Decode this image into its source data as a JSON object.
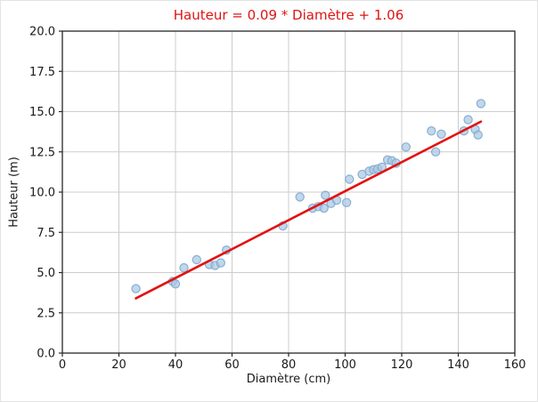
{
  "chart_data": {
    "type": "scatter",
    "title": "Hauteur = 0.09 * Diamètre + 1.06",
    "xlabel": "Diamètre (cm)",
    "ylabel": "Hauteur (m)",
    "xlim": [
      0,
      160
    ],
    "ylim": [
      0,
      20
    ],
    "xticks": [
      0,
      20,
      40,
      60,
      80,
      100,
      120,
      140,
      160
    ],
    "xtick_labels": [
      "0",
      "20",
      "40",
      "60",
      "80",
      "100",
      "120",
      "140",
      "160"
    ],
    "yticks": [
      0,
      2.5,
      5,
      7.5,
      10,
      12.5,
      15,
      17.5,
      20
    ],
    "ytick_labels": [
      "0.0",
      "2.5",
      "5.0",
      "7.5",
      "10.0",
      "12.5",
      "15.0",
      "17.5",
      "20.0"
    ],
    "grid": true,
    "legend": "none",
    "points": [
      [
        26,
        4.0
      ],
      [
        39,
        4.45
      ],
      [
        40,
        4.3
      ],
      [
        43,
        5.3
      ],
      [
        47.5,
        5.8
      ],
      [
        52,
        5.5
      ],
      [
        54,
        5.45
      ],
      [
        56,
        5.6
      ],
      [
        58,
        6.4
      ],
      [
        78,
        7.9
      ],
      [
        84,
        9.7
      ],
      [
        88.5,
        9.0
      ],
      [
        90.5,
        9.1
      ],
      [
        92.5,
        9.0
      ],
      [
        93,
        9.8
      ],
      [
        95,
        9.3
      ],
      [
        97,
        9.5
      ],
      [
        100.5,
        9.35
      ],
      [
        101.5,
        10.8
      ],
      [
        106,
        11.1
      ],
      [
        108.5,
        11.3
      ],
      [
        110,
        11.4
      ],
      [
        111.5,
        11.45
      ],
      [
        113,
        11.55
      ],
      [
        115,
        12.0
      ],
      [
        116.5,
        11.95
      ],
      [
        118,
        11.8
      ],
      [
        121.5,
        12.8
      ],
      [
        130.5,
        13.8
      ],
      [
        132,
        12.5
      ],
      [
        134,
        13.6
      ],
      [
        142,
        13.8
      ],
      [
        143.5,
        14.5
      ],
      [
        146,
        13.9
      ],
      [
        147,
        13.55
      ],
      [
        148,
        15.5
      ]
    ],
    "regression": {
      "slope": 0.09,
      "intercept": 1.06,
      "x_start": 26,
      "x_end": 148
    },
    "colors": {
      "title": "#df1414",
      "line": "#e21212",
      "point_fill": "#a9c7e3",
      "point_edge": "#7fa8cd",
      "grid": "#cccccc",
      "spine": "#262626",
      "tick_label": "#1a1a1a"
    }
  }
}
